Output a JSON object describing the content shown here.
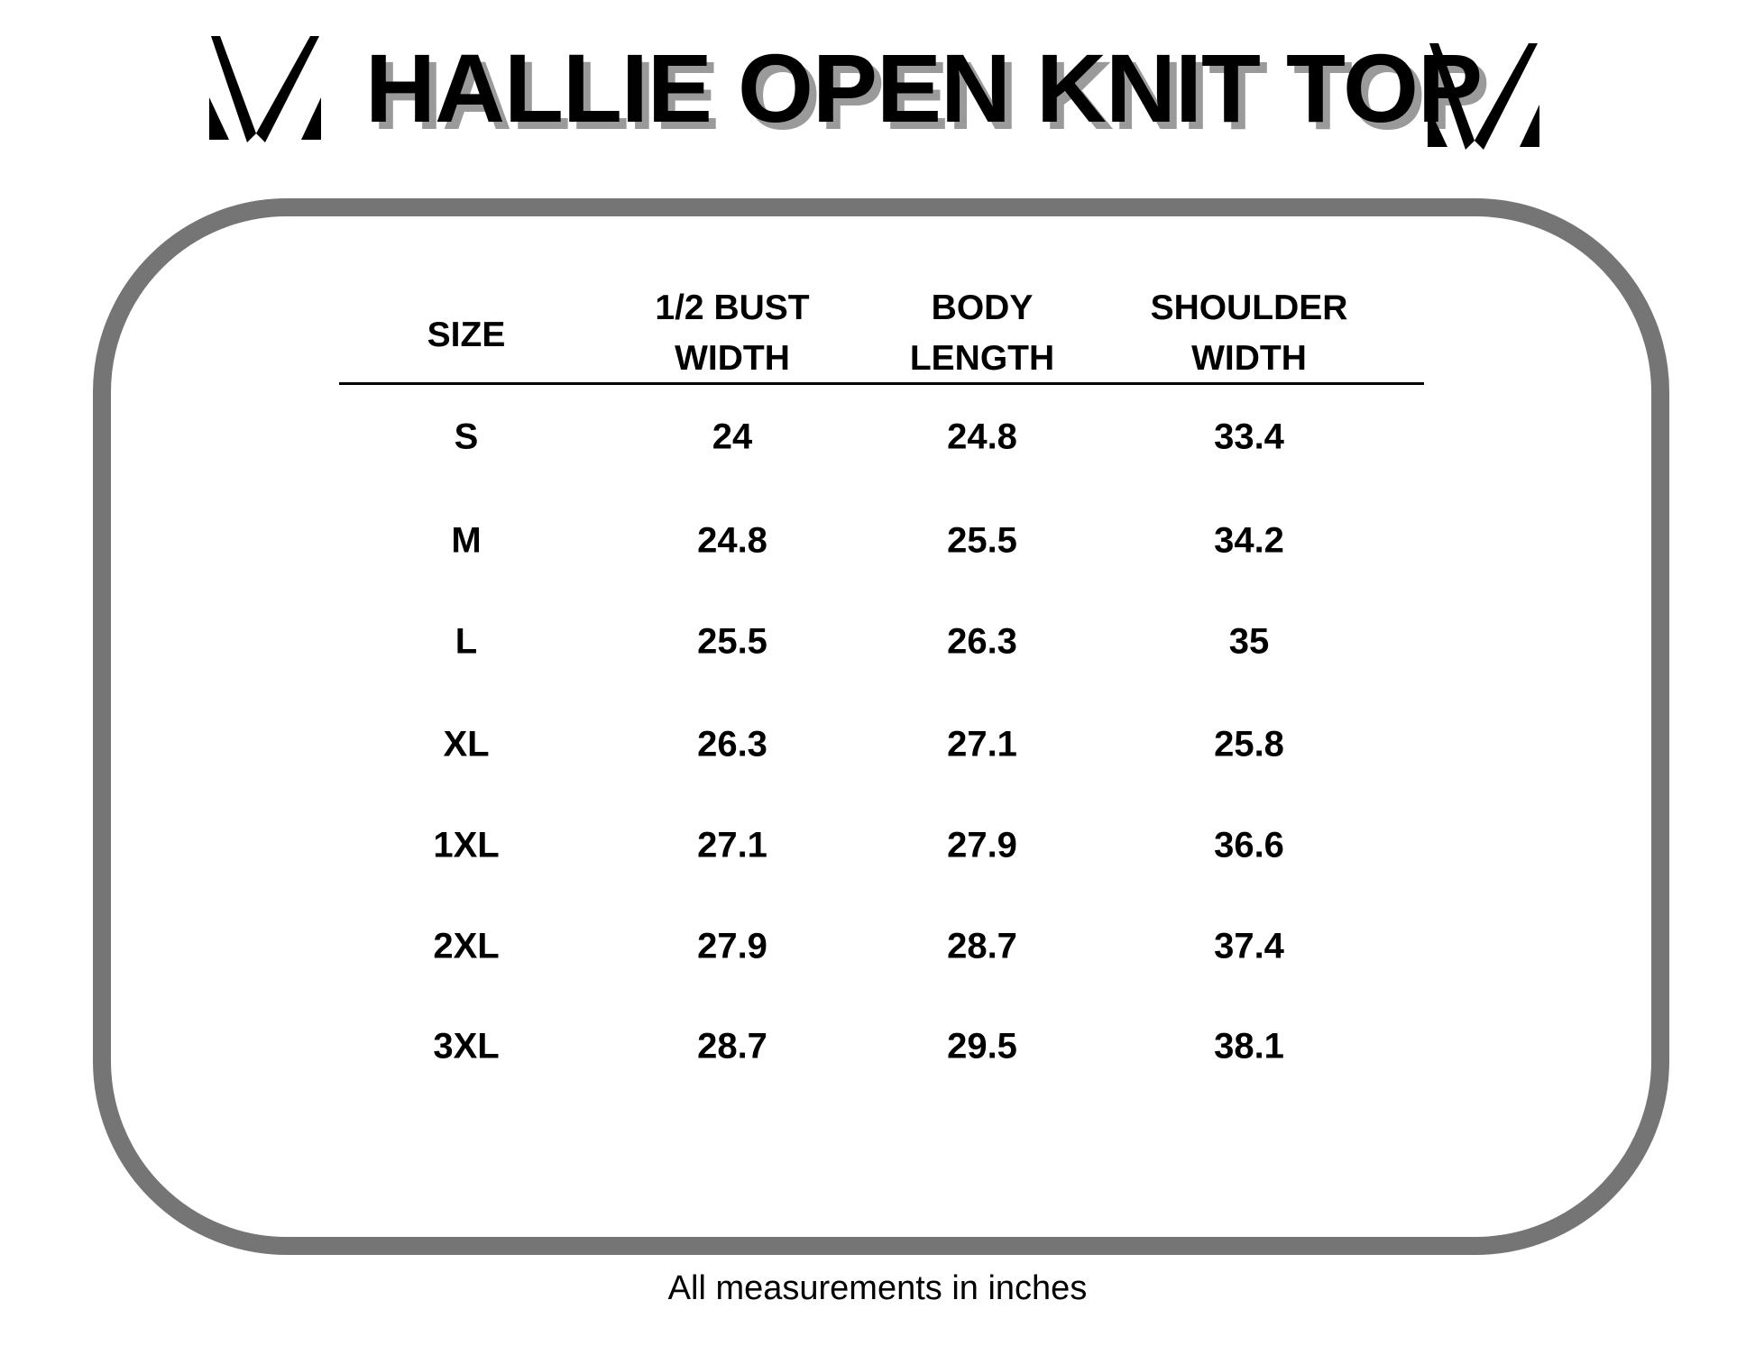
{
  "title": "HALLIE OPEN KNIT TOP",
  "logo_icon": "m-chevron-logo",
  "colors": {
    "frame": "#757575",
    "title_shadow": "#9a9a9a",
    "text": "#000000"
  },
  "table": {
    "headers": [
      {
        "line1": "SIZE",
        "line2": ""
      },
      {
        "line1": "1/2 BUST",
        "line2": "WIDTH"
      },
      {
        "line1": "BODY",
        "line2": "LENGTH"
      },
      {
        "line1": "SHOULDER",
        "line2": "WIDTH"
      }
    ],
    "rows": [
      [
        "S",
        "24",
        "24.8",
        "33.4"
      ],
      [
        "M",
        "24.8",
        "25.5",
        "34.2"
      ],
      [
        "L",
        "25.5",
        "26.3",
        "35"
      ],
      [
        "XL",
        "26.3",
        "27.1",
        "25.8"
      ],
      [
        "1XL",
        "27.1",
        "27.9",
        "36.6"
      ],
      [
        "2XL",
        "27.9",
        "28.7",
        "37.4"
      ],
      [
        "3XL",
        "28.7",
        "29.5",
        "38.1"
      ]
    ]
  },
  "footer": "All measurements in inches"
}
